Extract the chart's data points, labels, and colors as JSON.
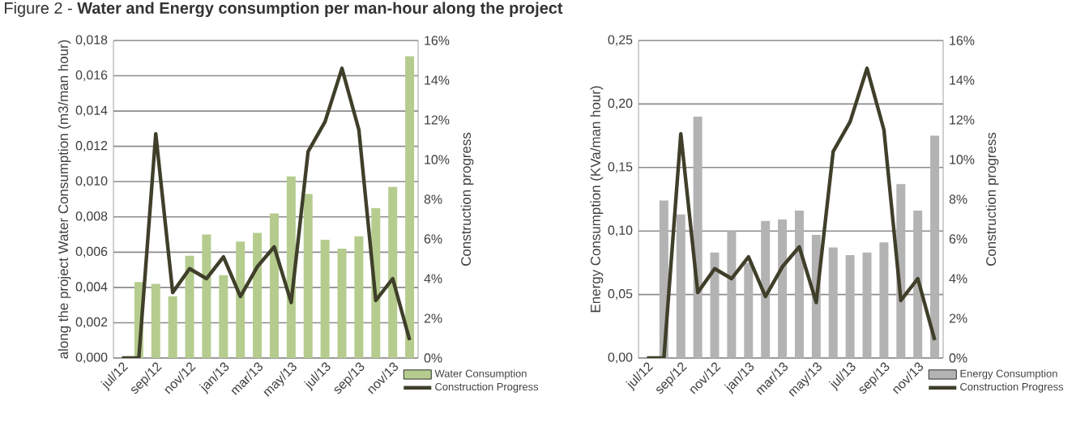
{
  "chart_data": [
    {
      "type": "bar",
      "title": "Figure 2 - **Water and Energy consumption per man-hour along the project**",
      "ylabel": "along the project Water Consumption (m3/man hour)",
      "y2label": "Construction progress",
      "categories": [
        "jul/12",
        null,
        "sep/12",
        null,
        "nov/12",
        null,
        "jan/13",
        null,
        "mar/13",
        null,
        "may/13",
        null,
        "jul/13",
        null,
        "sep/13",
        null,
        "nov/13",
        null
      ],
      "series": [
        {
          "name": "Water Consumption",
          "type": "bar",
          "color": "#b5cc8e",
          "values": [
            null,
            0.0043,
            0.0042,
            0.0035,
            0.0058,
            0.007,
            0.0047,
            0.0066,
            0.0071,
            0.0082,
            0.0103,
            0.0093,
            0.0067,
            0.0062,
            0.0069,
            0.0085,
            0.0097,
            0.0171
          ]
        },
        {
          "name": "Construction Progress",
          "type": "line",
          "axis": "y2",
          "color": "#3f3f2a",
          "values": [
            0,
            0,
            11.3,
            3.3,
            4.5,
            4.0,
            5.1,
            3.1,
            4.6,
            5.6,
            2.8,
            10.4,
            11.9,
            14.6,
            11.5,
            2.9,
            4.0,
            0.9
          ]
        }
      ],
      "ylim": [
        0,
        0.018
      ],
      "yticks": [
        {
          "value": 0,
          "label": "0,000"
        },
        {
          "value": 0.002,
          "label": "0,002"
        },
        {
          "value": 0.004,
          "label": "0,004"
        },
        {
          "value": 0.006,
          "label": "0,006"
        },
        {
          "value": 0.008,
          "label": "0,008"
        },
        {
          "value": 0.01,
          "label": "0,010"
        },
        {
          "value": 0.012,
          "label": "0,012"
        },
        {
          "value": 0.014,
          "label": "0,014"
        },
        {
          "value": 0.016,
          "label": "0,016"
        },
        {
          "value": 0.018,
          "label": "0,018"
        }
      ],
      "y2lim": [
        0,
        16
      ],
      "y2ticks": [
        {
          "value": 0,
          "label": "0%"
        },
        {
          "value": 2,
          "label": "2%"
        },
        {
          "value": 4,
          "label": "4%"
        },
        {
          "value": 6,
          "label": "6%"
        },
        {
          "value": 8,
          "label": "8%"
        },
        {
          "value": 10,
          "label": "10%"
        },
        {
          "value": 12,
          "label": "12%"
        },
        {
          "value": 14,
          "label": "14%"
        },
        {
          "value": 16,
          "label": "16%"
        }
      ],
      "grid": "y",
      "legend": "bottom right"
    },
    {
      "type": "bar",
      "ylabel": "Energy Consumption (KVa/man hour)",
      "y2label": "Construction progress",
      "categories": [
        "jul/12",
        null,
        "sep/12",
        null,
        "nov/12",
        null,
        "jan/13",
        null,
        "mar/13",
        null,
        "may/13",
        null,
        "jul/13",
        null,
        "sep/13",
        null,
        "nov/13",
        null
      ],
      "series": [
        {
          "name": "Energy Consumption",
          "type": "bar",
          "color": "#b3b3b3",
          "values": [
            null,
            0.124,
            0.113,
            0.19,
            0.083,
            0.1,
            0.075,
            0.108,
            0.109,
            0.116,
            0.097,
            0.087,
            0.081,
            0.083,
            0.091,
            0.137,
            0.116,
            0.175
          ]
        },
        {
          "name": "Construction Progress",
          "type": "line",
          "axis": "y2",
          "color": "#3f3f2a",
          "values": [
            0,
            0,
            11.3,
            3.3,
            4.5,
            4.0,
            5.1,
            3.1,
            4.6,
            5.6,
            2.8,
            10.4,
            11.9,
            14.6,
            11.5,
            2.9,
            4.0,
            0.9
          ]
        }
      ],
      "ylim": [
        0,
        0.25
      ],
      "yticks": [
        {
          "value": 0,
          "label": "0,00"
        },
        {
          "value": 0.05,
          "label": "0,05"
        },
        {
          "value": 0.1,
          "label": "0,10"
        },
        {
          "value": 0.15,
          "label": "0,15"
        },
        {
          "value": 0.2,
          "label": "0,20"
        },
        {
          "value": 0.25,
          "label": "0,25"
        }
      ],
      "y2lim": [
        0,
        16
      ],
      "y2ticks": [
        {
          "value": 0,
          "label": "0%"
        },
        {
          "value": 2,
          "label": "2%"
        },
        {
          "value": 4,
          "label": "4%"
        },
        {
          "value": 6,
          "label": "6%"
        },
        {
          "value": 8,
          "label": "8%"
        },
        {
          "value": 10,
          "label": "10%"
        },
        {
          "value": 12,
          "label": "12%"
        },
        {
          "value": 14,
          "label": "14%"
        },
        {
          "value": 16,
          "label": "16%"
        }
      ],
      "grid": "y",
      "legend": "bottom right"
    }
  ]
}
